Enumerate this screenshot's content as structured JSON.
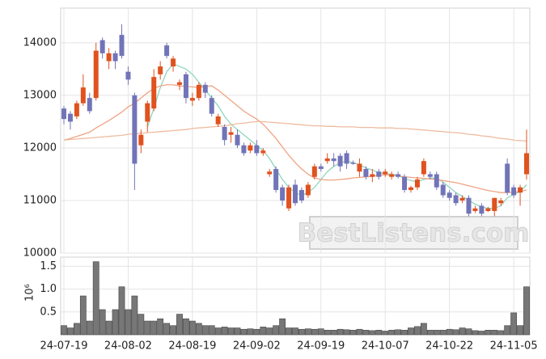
{
  "chart_data": [
    {
      "type": "candlestick",
      "open": [
        12750,
        12650,
        12600,
        12850,
        12950,
        12950,
        14050,
        13650,
        13800,
        14150,
        13450,
        13000,
        12050,
        12500,
        12750,
        13400,
        13950,
        13550,
        13200,
        13400,
        12900,
        12950,
        13200,
        12950,
        12450,
        12400,
        12250,
        12250,
        12050,
        11950,
        12050,
        11900,
        11500,
        11600,
        11250,
        10850,
        11300,
        11200,
        11100,
        11450,
        11650,
        11750,
        11800,
        11850,
        11900,
        11720,
        11550,
        11600,
        11450,
        11550,
        11500,
        11450,
        11500,
        11450,
        11200,
        11250,
        11500,
        11500,
        11500,
        11300,
        11150,
        11100,
        11000,
        11050,
        10800,
        10900,
        10800,
        10800,
        10950,
        11700,
        11250,
        11150,
        11500
      ],
      "high": [
        12800,
        12700,
        12900,
        13400,
        13050,
        14000,
        14100,
        13900,
        13850,
        14350,
        13550,
        13050,
        12350,
        12900,
        13500,
        13650,
        14000,
        13750,
        13300,
        13450,
        13050,
        13250,
        13250,
        13000,
        12650,
        12450,
        12400,
        12350,
        12100,
        12100,
        12150,
        12000,
        11600,
        11650,
        11300,
        11300,
        11400,
        11250,
        11350,
        11700,
        11700,
        11900,
        11900,
        11900,
        11950,
        11760,
        11800,
        11650,
        11600,
        11600,
        11600,
        11550,
        11550,
        11500,
        11280,
        11450,
        11800,
        11550,
        11550,
        11350,
        11200,
        11150,
        11100,
        11100,
        10900,
        10950,
        10880,
        11050,
        11050,
        11800,
        11300,
        11300,
        12350
      ],
      "low": [
        12450,
        12350,
        12550,
        12800,
        12650,
        12900,
        13700,
        13500,
        13500,
        13700,
        13200,
        11200,
        11900,
        12300,
        12700,
        13300,
        13700,
        13450,
        13100,
        12850,
        12800,
        12900,
        12950,
        12600,
        12400,
        12050,
        12100,
        12000,
        11850,
        11900,
        11850,
        11850,
        11450,
        11150,
        10900,
        10800,
        10900,
        10950,
        11050,
        11400,
        11550,
        11700,
        11650,
        11550,
        11600,
        11680,
        11450,
        11400,
        11350,
        11400,
        11450,
        11400,
        11420,
        11150,
        11150,
        11200,
        11450,
        11400,
        11200,
        11050,
        11000,
        10900,
        10950,
        10700,
        10760,
        10700,
        10780,
        10700,
        10900,
        11100,
        11050,
        10900,
        11400
      ],
      "close": [
        12550,
        12500,
        12850,
        13150,
        12700,
        13850,
        13800,
        13800,
        13650,
        13750,
        13300,
        11700,
        12250,
        12850,
        13350,
        13550,
        13750,
        13700,
        13250,
        12950,
        12950,
        13200,
        13050,
        12650,
        12600,
        12150,
        12300,
        12050,
        11900,
        12050,
        11900,
        11950,
        11550,
        11200,
        11000,
        11250,
        10950,
        11000,
        11300,
        11650,
        11600,
        11800,
        11750,
        11650,
        11700,
        11700,
        11700,
        11450,
        11500,
        11450,
        11550,
        11500,
        11450,
        11200,
        11250,
        11400,
        11750,
        11450,
        11250,
        11100,
        11050,
        10950,
        11050,
        10750,
        10850,
        10750,
        10850,
        11050,
        11000,
        11150,
        11100,
        11250,
        11900
      ],
      "up_color": "#e0521e",
      "down_color": "#7274b8",
      "series": [
        {
          "color": "#8fd6bd",
          "values": [
            null,
            null,
            null,
            null,
            null,
            null,
            null,
            null,
            null,
            null,
            null,
            null,
            null,
            12400,
            12750,
            13150,
            13450,
            13600,
            13550,
            13500,
            13400,
            13250,
            13100,
            12950,
            12800,
            12600,
            12450,
            12350,
            12250,
            12150,
            12050,
            11950,
            11800,
            11600,
            11400,
            11250,
            11150,
            11100,
            11150,
            11250,
            11400,
            11550,
            11650,
            11720,
            11750,
            11720,
            11680,
            11620,
            11580,
            11530,
            11510,
            11500,
            11480,
            11420,
            11380,
            11360,
            11400,
            11430,
            11420,
            11350,
            11250,
            11150,
            11080,
            11000,
            10930,
            10880,
            10850,
            10850,
            10900,
            11050,
            11120,
            11170,
            11300
          ]
        },
        {
          "color": "#f0a383",
          "values": [
            12150,
            12180,
            12220,
            12260,
            12300,
            12380,
            12450,
            12520,
            12600,
            12680,
            12780,
            12850,
            12950,
            13050,
            13130,
            13180,
            13200,
            13200,
            13180,
            13170,
            13160,
            13150,
            13170,
            13180,
            13100,
            13000,
            12900,
            12800,
            12700,
            12620,
            12550,
            12450,
            12320,
            12180,
            12020,
            11860,
            11720,
            11600,
            11500,
            11430,
            11400,
            11390,
            11390,
            11400,
            11410,
            11430,
            11440,
            11450,
            11460,
            11480,
            11490,
            11480,
            11470,
            11450,
            11440,
            11430,
            11420,
            11410,
            11400,
            11380,
            11360,
            11340,
            11310,
            11280,
            11250,
            11220,
            11190,
            11170,
            11150,
            11150,
            11160,
            11170,
            11200
          ]
        },
        {
          "color": "#eebc9f",
          "values": [
            12150,
            12160,
            12170,
            12180,
            12190,
            12200,
            12210,
            12220,
            12230,
            12240,
            12260,
            12270,
            12280,
            12290,
            12300,
            12310,
            12320,
            12330,
            12340,
            12350,
            12370,
            12380,
            12390,
            12400,
            12410,
            12420,
            12440,
            12460,
            12470,
            12490,
            12500,
            12500,
            12490,
            12480,
            12470,
            12460,
            12450,
            12440,
            12430,
            12420,
            12420,
            12410,
            12410,
            12400,
            12400,
            12400,
            12390,
            12390,
            12390,
            12380,
            12380,
            12380,
            12370,
            12370,
            12360,
            12350,
            12340,
            12330,
            12320,
            12310,
            12300,
            12290,
            12280,
            12260,
            12250,
            12230,
            12220,
            12200,
            12180,
            12170,
            12150,
            12140,
            12130
          ]
        }
      ],
      "ylim": [
        10000,
        14660
      ],
      "yticks": [
        10000,
        11000,
        12000,
        13000,
        14000
      ],
      "grid": true,
      "annotation": "BestListens.com"
    },
    {
      "type": "bar",
      "categories": [
        "24-07-19",
        null,
        null,
        null,
        null,
        null,
        null,
        null,
        null,
        null,
        "24-08-02",
        null,
        null,
        null,
        null,
        null,
        null,
        null,
        null,
        null,
        "24-08-19",
        null,
        null,
        null,
        null,
        null,
        null,
        null,
        null,
        null,
        "24-09-02",
        null,
        null,
        null,
        null,
        null,
        null,
        null,
        null,
        null,
        "24-09-19",
        null,
        null,
        null,
        null,
        null,
        null,
        null,
        null,
        null,
        "24-10-07",
        null,
        null,
        null,
        null,
        null,
        null,
        null,
        null,
        null,
        "24-10-22",
        null,
        null,
        null,
        null,
        null,
        null,
        null,
        null,
        null,
        "24-11-05",
        null,
        null
      ],
      "values": [
        0.2,
        0.15,
        0.25,
        0.85,
        0.3,
        1.6,
        0.55,
        0.3,
        0.55,
        1.05,
        0.55,
        0.85,
        0.45,
        0.3,
        0.3,
        0.35,
        0.25,
        0.2,
        0.45,
        0.35,
        0.3,
        0.25,
        0.2,
        0.2,
        0.15,
        0.17,
        0.15,
        0.15,
        0.12,
        0.13,
        0.12,
        0.17,
        0.15,
        0.2,
        0.35,
        0.15,
        0.15,
        0.12,
        0.13,
        0.12,
        0.13,
        0.1,
        0.1,
        0.12,
        0.11,
        0.1,
        0.12,
        0.1,
        0.09,
        0.1,
        0.08,
        0.1,
        0.11,
        0.1,
        0.15,
        0.18,
        0.25,
        0.1,
        0.1,
        0.1,
        0.12,
        0.11,
        0.15,
        0.13,
        0.09,
        0.08,
        0.1,
        0.1,
        0.09,
        0.2,
        0.48,
        0.2,
        1.05
      ],
      "color": "#777777",
      "ylabel": "10⁶",
      "ylim": [
        0,
        1.7
      ],
      "yticks": [
        0.5,
        {
          "value": 1,
          "label": "1.0"
        },
        1.5
      ],
      "grid": true
    }
  ]
}
